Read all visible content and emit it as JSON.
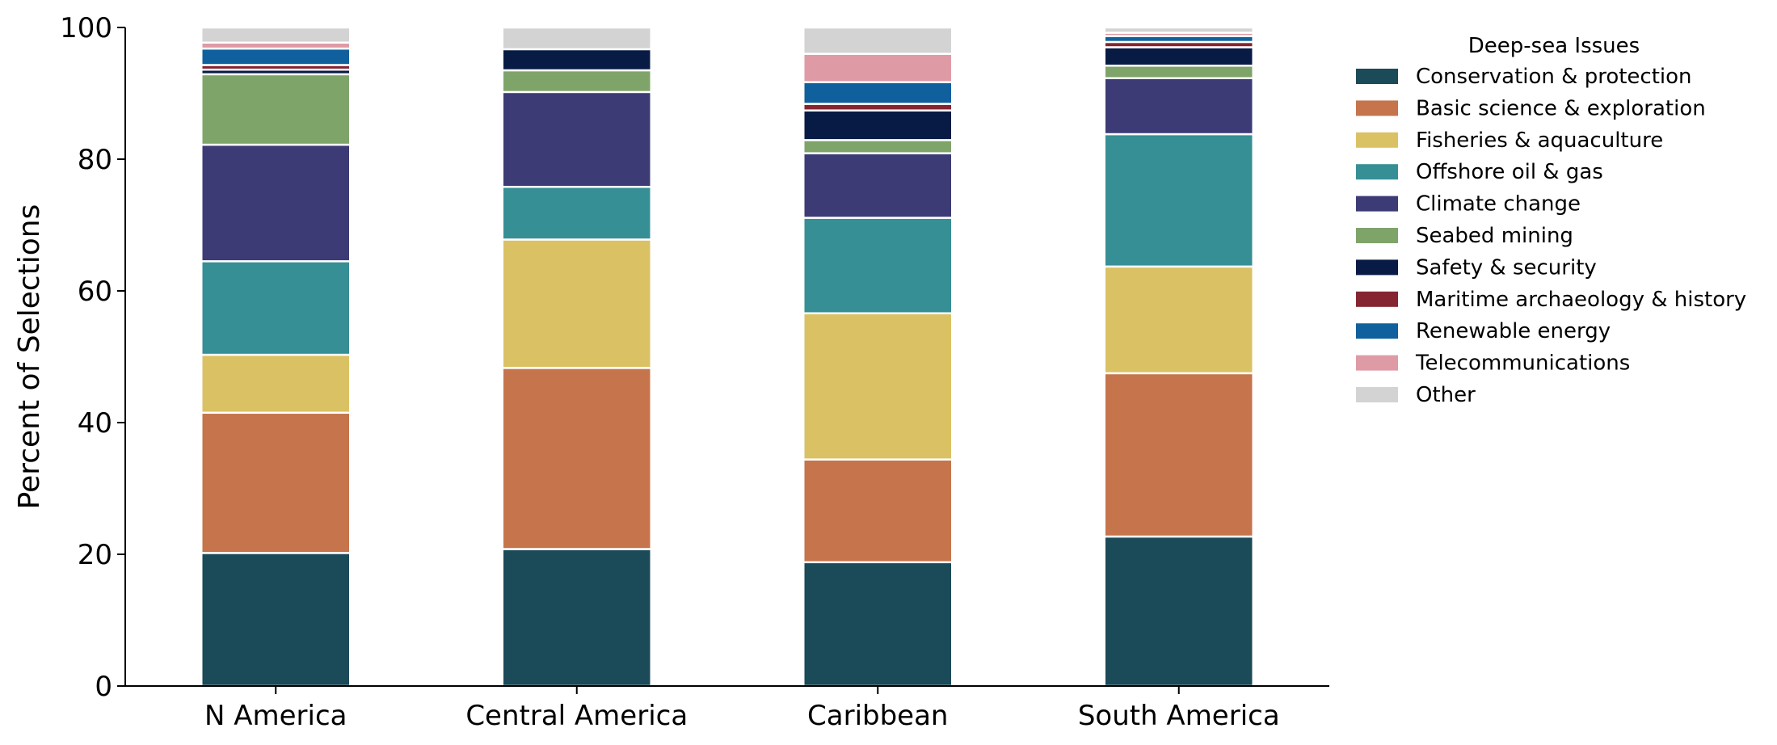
{
  "chart_data": {
    "type": "bar",
    "stacked": true,
    "title": "",
    "xlabel": "",
    "ylabel": "Percent of Selections",
    "ylim": [
      0,
      100
    ],
    "yticks": [
      0,
      20,
      40,
      60,
      80,
      100
    ],
    "grid": false,
    "legend": {
      "title": "Deep-sea Issues",
      "placement": "right"
    },
    "categories": [
      "N America",
      "Central America",
      "Caribbean",
      "South America"
    ],
    "series": [
      {
        "name": "Conservation & protection",
        "color": "#1b4a59",
        "values": [
          20.2,
          20.8,
          18.8,
          22.7
        ]
      },
      {
        "name": "Basic science & exploration",
        "color": "#c5744b",
        "values": [
          21.3,
          27.5,
          15.6,
          24.8
        ]
      },
      {
        "name": "Fisheries & aquaculture",
        "color": "#dac264",
        "values": [
          8.8,
          19.5,
          22.2,
          16.2
        ]
      },
      {
        "name": "Offshore oil & gas",
        "color": "#368f95",
        "values": [
          14.2,
          8.0,
          14.5,
          20.1
        ]
      },
      {
        "name": "Climate change",
        "color": "#3d3b75",
        "values": [
          17.7,
          14.4,
          9.8,
          8.5
        ]
      },
      {
        "name": "Seabed mining",
        "color": "#7fa46a",
        "values": [
          10.7,
          3.3,
          2.0,
          1.9
        ]
      },
      {
        "name": "Safety & security",
        "color": "#081b44",
        "values": [
          0.7,
          3.2,
          4.5,
          2.8
        ]
      },
      {
        "name": "Maritime archaeology & history",
        "color": "#852531",
        "values": [
          0.7,
          0.0,
          1.0,
          0.8
        ]
      },
      {
        "name": "Renewable energy",
        "color": "#10609d",
        "values": [
          2.5,
          0.0,
          3.3,
          0.9
        ]
      },
      {
        "name": "Telecommunications",
        "color": "#df9ba5",
        "values": [
          0.9,
          0.0,
          4.3,
          0.5
        ]
      },
      {
        "name": "Other",
        "color": "#d3d3d3",
        "values": [
          2.3,
          3.3,
          4.0,
          0.8
        ]
      }
    ]
  }
}
